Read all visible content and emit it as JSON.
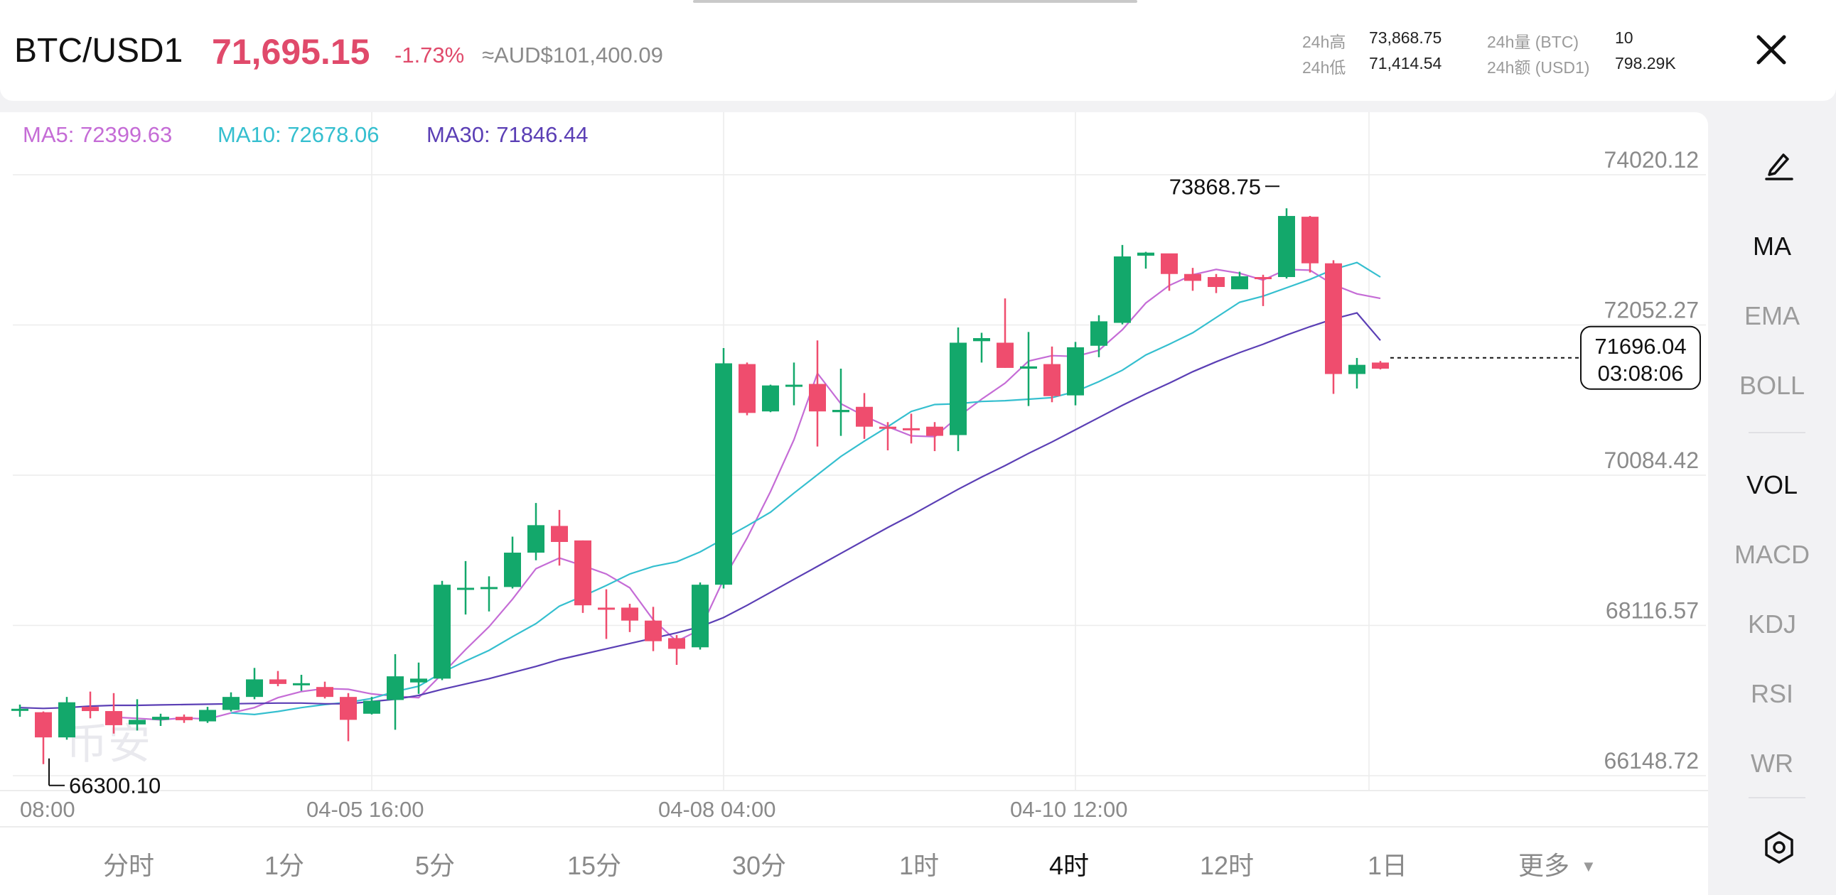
{
  "header": {
    "pair": "BTC/USD1",
    "last_price": "71,695.15",
    "change_pct": "-1.73%",
    "aud_value": "≈AUD$101,400.09",
    "stats": {
      "high_label": "24h高",
      "high_value": "73,868.75",
      "low_label": "24h低",
      "low_value": "71,414.54",
      "vol_label": "24h量 (BTC)",
      "vol_value": "10",
      "amount_label": "24h额 (USD1)",
      "amount_value": "798.29K"
    }
  },
  "legend": {
    "ma5": "MA5: 72399.63",
    "ma10": "MA10: 72678.06",
    "ma30": "MA30: 71846.44"
  },
  "colors": {
    "up": "#13a86b",
    "down": "#ef4d6e",
    "ma5": "#c56cd6",
    "ma10": "#35bfcf",
    "ma30": "#5b3fb5",
    "grid": "#ececec",
    "axis_text": "#8a8a8a"
  },
  "watermark": "币安",
  "chart_data": {
    "type": "candlestick",
    "y_ticks": [
      "74020.12",
      "72052.27",
      "70084.42",
      "68116.57",
      "66148.72"
    ],
    "ylim": [
      66148.72,
      74020.12
    ],
    "x_ticks": [
      "08:00",
      "04-05 16:00",
      "04-08 04:00",
      "04-10 12:00"
    ],
    "x_tick_index": [
      1,
      15,
      30,
      45
    ],
    "high_label": "73868.75",
    "low_label": "66300.10",
    "current_price": "71696.04",
    "countdown": "03:08:06",
    "candles": [
      [
        67000,
        67025,
        67080,
        66920
      ],
      [
        66980,
        66650,
        66990,
        66300
      ],
      [
        66650,
        67110,
        67180,
        66620
      ],
      [
        67050,
        66995,
        67250,
        66900
      ],
      [
        66995,
        66810,
        67230,
        66700
      ],
      [
        66820,
        66880,
        67150,
        66740
      ],
      [
        66880,
        66920,
        66960,
        66800
      ],
      [
        66920,
        66875,
        66950,
        66840
      ],
      [
        66860,
        67010,
        67050,
        66840
      ],
      [
        67010,
        67180,
        67240,
        66990
      ],
      [
        67180,
        67410,
        67560,
        67150
      ],
      [
        67410,
        67350,
        67520,
        67320
      ],
      [
        67350,
        67360,
        67470,
        67260
      ],
      [
        67310,
        67180,
        67380,
        67160
      ],
      [
        67180,
        66880,
        67230,
        66600
      ],
      [
        66960,
        67130,
        67180,
        66950
      ],
      [
        67140,
        67450,
        67740,
        66750
      ],
      [
        67370,
        67420,
        67630,
        67220
      ],
      [
        67420,
        68650,
        68700,
        67400
      ],
      [
        68600,
        68610,
        68960,
        68260
      ],
      [
        68620,
        68620,
        68760,
        68300
      ],
      [
        68620,
        69070,
        69280,
        68600
      ],
      [
        69070,
        69430,
        69720,
        68970
      ],
      [
        69420,
        69210,
        69630,
        68900
      ],
      [
        69230,
        68380,
        69230,
        68280
      ],
      [
        68350,
        68340,
        68590,
        67940
      ],
      [
        68350,
        68180,
        68400,
        68030
      ],
      [
        68180,
        67910,
        68360,
        67780
      ],
      [
        67950,
        67810,
        67990,
        67600
      ],
      [
        67830,
        68650,
        68680,
        67800
      ],
      [
        68650,
        71550,
        71750,
        68600
      ],
      [
        71540,
        70900,
        71560,
        70870
      ],
      [
        70920,
        71260,
        71270,
        70910
      ],
      [
        71260,
        71270,
        71560,
        71000
      ],
      [
        71280,
        70920,
        71850,
        70460
      ],
      [
        70910,
        70940,
        71480,
        70600
      ],
      [
        70980,
        70720,
        71160,
        70560
      ],
      [
        70720,
        70700,
        70780,
        70410
      ],
      [
        70700,
        70680,
        70890,
        70500
      ],
      [
        70720,
        70600,
        70780,
        70400
      ],
      [
        70610,
        71820,
        72020,
        70400
      ],
      [
        71840,
        71880,
        71950,
        71560
      ],
      [
        71820,
        71490,
        72400,
        71490
      ],
      [
        71480,
        71510,
        71960,
        70990
      ],
      [
        71540,
        71120,
        71770,
        71040
      ],
      [
        71130,
        71760,
        71830,
        71000
      ],
      [
        71780,
        72100,
        72180,
        71630
      ],
      [
        72080,
        72950,
        73100,
        72060
      ],
      [
        72960,
        73000,
        73010,
        72790
      ],
      [
        72990,
        72720,
        72980,
        72500
      ],
      [
        72720,
        72630,
        72800,
        72500
      ],
      [
        72680,
        72550,
        72720,
        72470
      ],
      [
        72520,
        72690,
        72750,
        72570
      ],
      [
        72680,
        72660,
        72710,
        72300
      ],
      [
        72680,
        73480,
        73580,
        72660
      ],
      [
        73470,
        72860,
        73480,
        72740
      ],
      [
        72860,
        71410,
        72900,
        71150
      ],
      [
        71410,
        71530,
        71620,
        71220
      ],
      [
        71560,
        71480,
        71580,
        71470
      ]
    ],
    "series": [
      {
        "name": "MA5",
        "values": [
          null,
          null,
          null,
          null,
          66915,
          66900,
          66880,
          66905,
          66890,
          66970,
          67040,
          67170,
          67250,
          67290,
          67280,
          67220,
          67190,
          67170,
          67480,
          67800,
          68100,
          68460,
          68860,
          69000,
          68900,
          68790,
          68610,
          68190,
          67910,
          68060,
          68720,
          69260,
          69870,
          70550,
          71420,
          71020,
          70860,
          70720,
          70600,
          70590,
          70850,
          71080,
          71290,
          71580,
          71650,
          71640,
          71720,
          71990,
          72340,
          72570,
          72710,
          72780,
          72730,
          72640,
          72780,
          72770,
          72580,
          72460,
          72400
        ]
      },
      {
        "name": "MA10",
        "values": [
          null,
          null,
          null,
          null,
          null,
          null,
          null,
          null,
          null,
          66970,
          66950,
          66990,
          67040,
          67080,
          67110,
          67160,
          67250,
          67320,
          67500,
          67650,
          67790,
          67970,
          68140,
          68370,
          68500,
          68640,
          68790,
          68890,
          68950,
          69080,
          69250,
          69420,
          69600,
          69850,
          70090,
          70330,
          70530,
          70720,
          70920,
          71010,
          71020,
          71050,
          71060,
          71080,
          71100,
          71180,
          71310,
          71460,
          71660,
          71800,
          71950,
          72150,
          72350,
          72430,
          72540,
          72650,
          72780,
          72870,
          72680
        ]
      },
      {
        "name": "MA30",
        "values": [
          67040,
          67030,
          67040,
          67060,
          67070,
          67070,
          67075,
          67080,
          67085,
          67090,
          67095,
          67100,
          67100,
          67090,
          67090,
          67120,
          67150,
          67200,
          67280,
          67350,
          67420,
          67500,
          67580,
          67670,
          67740,
          67810,
          67880,
          67950,
          68020,
          68100,
          68220,
          68380,
          68550,
          68720,
          68890,
          69060,
          69230,
          69400,
          69560,
          69730,
          69900,
          70060,
          70210,
          70370,
          70520,
          70680,
          70840,
          71000,
          71150,
          71290,
          71440,
          71570,
          71690,
          71800,
          71920,
          72030,
          72130,
          72210,
          71850
        ]
      }
    ]
  },
  "sidebar": {
    "draw_icon": "pen-icon",
    "items": [
      "MA",
      "EMA",
      "BOLL",
      "VOL",
      "MACD",
      "KDJ",
      "RSI",
      "WR"
    ],
    "settings_icon": "settings-icon"
  },
  "intervals": [
    "分时",
    "1分",
    "5分",
    "15分",
    "30分",
    "1时",
    "4时",
    "12时",
    "1日",
    "更多"
  ]
}
